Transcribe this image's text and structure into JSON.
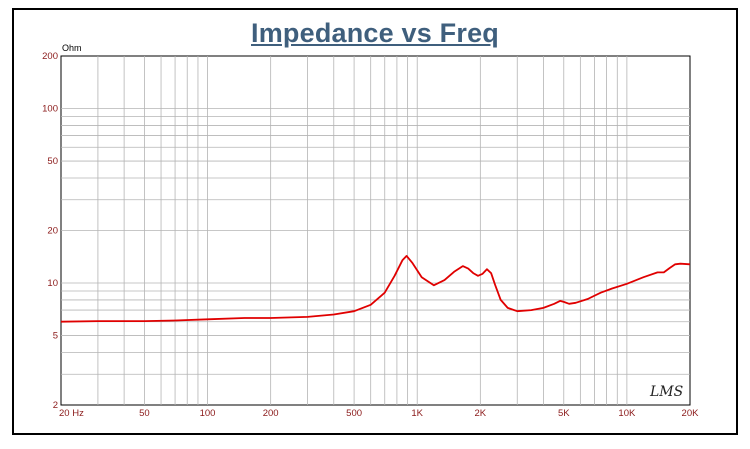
{
  "chart_data": {
    "type": "line",
    "title": "Impedance vs Freq",
    "ylabel": "Ohm",
    "xlabel": "",
    "x_scale": "log",
    "y_scale": "log",
    "xlim": [
      20,
      20000
    ],
    "ylim": [
      2,
      200
    ],
    "grid": true,
    "x_ticks": [
      {
        "value": 20,
        "label": "20  Hz"
      },
      {
        "value": 50,
        "label": "50"
      },
      {
        "value": 100,
        "label": "100"
      },
      {
        "value": 200,
        "label": "200"
      },
      {
        "value": 500,
        "label": "500"
      },
      {
        "value": 1000,
        "label": "1K"
      },
      {
        "value": 2000,
        "label": "2K"
      },
      {
        "value": 5000,
        "label": "5K"
      },
      {
        "value": 10000,
        "label": "10K"
      },
      {
        "value": 20000,
        "label": "20K"
      }
    ],
    "y_ticks": [
      {
        "value": 200,
        "label": "200"
      },
      {
        "value": 100,
        "label": "100"
      },
      {
        "value": 50,
        "label": "50"
      },
      {
        "value": 20,
        "label": "20"
      },
      {
        "value": 10,
        "label": "10"
      },
      {
        "value": 5,
        "label": "5"
      },
      {
        "value": 2,
        "label": "2"
      }
    ],
    "series": [
      {
        "color": "#e00000",
        "x": [
          20,
          30,
          50,
          70,
          100,
          150,
          200,
          300,
          400,
          500,
          600,
          700,
          780,
          850,
          890,
          950,
          1050,
          1200,
          1350,
          1500,
          1650,
          1750,
          1850,
          1950,
          2050,
          2150,
          2250,
          2350,
          2500,
          2700,
          3000,
          3500,
          4000,
          4500,
          4800,
          5000,
          5300,
          5700,
          6500,
          7500,
          8500,
          10000,
          12000,
          14000,
          15000,
          16000,
          17000,
          18000,
          20000
        ],
        "y": [
          6.0,
          6.05,
          6.05,
          6.1,
          6.2,
          6.3,
          6.3,
          6.4,
          6.6,
          6.9,
          7.5,
          8.8,
          11.0,
          13.5,
          14.3,
          13.0,
          10.8,
          9.7,
          10.4,
          11.6,
          12.5,
          12.1,
          11.4,
          11.0,
          11.3,
          12.0,
          11.4,
          9.8,
          8.0,
          7.2,
          6.9,
          7.0,
          7.2,
          7.6,
          7.9,
          7.8,
          7.6,
          7.7,
          8.1,
          8.8,
          9.3,
          9.9,
          10.8,
          11.5,
          11.5,
          12.2,
          12.8,
          12.9,
          12.8
        ]
      }
    ]
  },
  "watermark": "LMS"
}
